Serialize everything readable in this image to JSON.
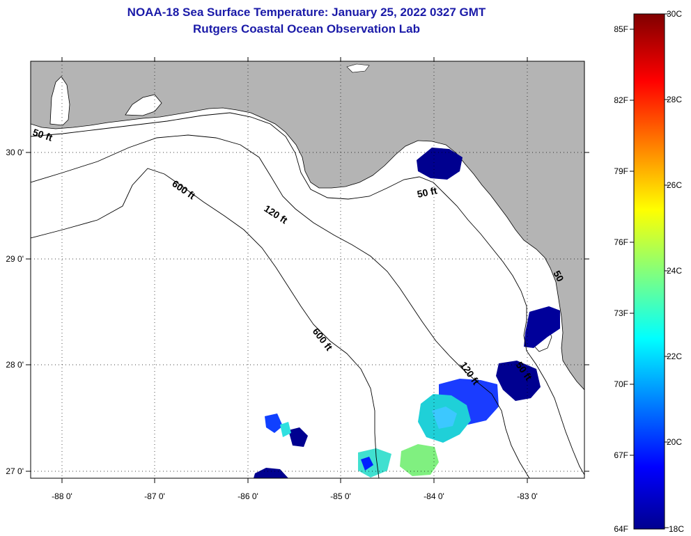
{
  "title": {
    "line1": "NOAA-18 Sea Surface Temperature:  January 25, 2022 0327 GMT",
    "line2": "Rutgers Coastal Ocean Observation Lab"
  },
  "map": {
    "longitude_labels": [
      "-88 0'",
      "-87 0'",
      "-86 0'",
      "-85 0'",
      "-84 0'",
      "-83 0'"
    ],
    "latitude_labels": [
      "30 0'",
      "29 0'",
      "28 0'",
      "27 0'"
    ],
    "contour_labels": [
      "50 ft",
      "600 ft",
      "120 ft",
      "50 ft",
      "600 ft",
      "120 ft",
      "50 ft",
      "50"
    ],
    "land_color": "#b4b4b4",
    "water_color": "#ffffff"
  },
  "colorbar": {
    "fahrenheit_labels": [
      "85F",
      "82F",
      "79F",
      "76F",
      "73F",
      "70F",
      "67F",
      "64F"
    ],
    "celsius_labels": [
      "30C",
      "28C",
      "26C",
      "24C",
      "22C",
      "20C",
      "18C"
    ],
    "min_c": 18,
    "max_c": 30
  }
}
